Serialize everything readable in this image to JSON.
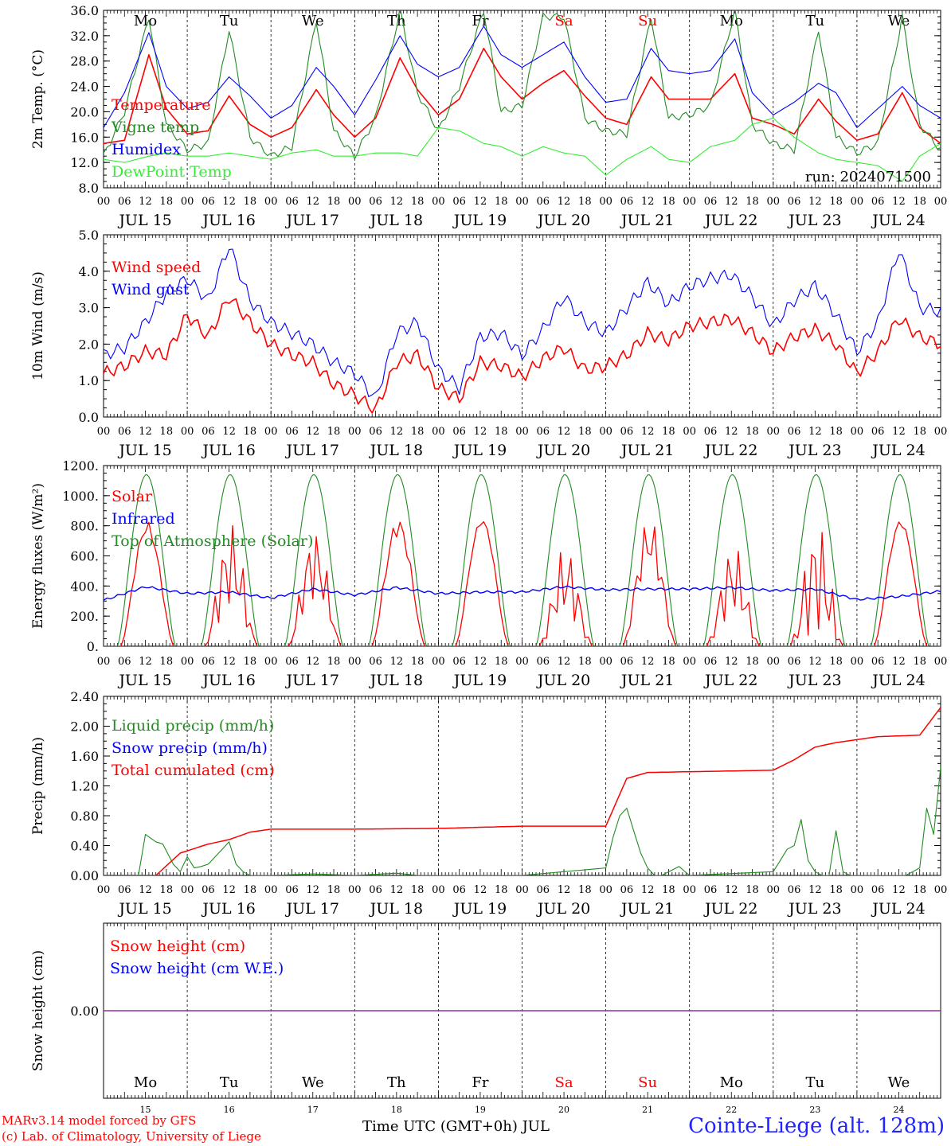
{
  "x_axis": {
    "hour_ticks": [
      "00",
      "06",
      "12",
      "18"
    ],
    "hour_end": "00",
    "dates": [
      "JUL 15",
      "JUL 16",
      "JUL 17",
      "JUL 18",
      "JUL 19",
      "JUL 20",
      "JUL 21",
      "JUL 22",
      "JUL 23",
      "JUL 24"
    ],
    "weekdays": [
      {
        "label": "Mo",
        "color": "#000000"
      },
      {
        "label": "Tu",
        "color": "#000000"
      },
      {
        "label": "We",
        "color": "#000000"
      },
      {
        "label": "Th",
        "color": "#000000"
      },
      {
        "label": "Fr",
        "color": "#000000"
      },
      {
        "label": "Sa",
        "color": "#ff0000"
      },
      {
        "label": "Su",
        "color": "#ff0000"
      },
      {
        "label": "Mo",
        "color": "#000000"
      },
      {
        "label": "Tu",
        "color": "#000000"
      },
      {
        "label": "We",
        "color": "#000000"
      }
    ],
    "day_numbers": [
      "15",
      "16",
      "17",
      "18",
      "19",
      "20",
      "21",
      "22",
      "23",
      "24"
    ]
  },
  "footer": {
    "model_line": "MARv3.14 model forced by GFS",
    "copyright_line": "(c) Lab. of Climatology, University of Liege",
    "time_label": "Time UTC (GMT+0h) JUL",
    "station": "Cointe-Liege (alt. 128m)"
  },
  "chart_data": [
    {
      "type": "line",
      "ylabel": "2m Temp. (°C)",
      "ylim": [
        8.0,
        36.0
      ],
      "yticks": [
        "8.0",
        "12.0",
        "16.0",
        "20.0",
        "24.0",
        "28.0",
        "32.0",
        "36.0"
      ],
      "annotation": "run: 2024071500",
      "x_hours": [
        0,
        6,
        13,
        18,
        24,
        30,
        36,
        42,
        48,
        54,
        61,
        66,
        72,
        78,
        85,
        90,
        96,
        102,
        109,
        114,
        120,
        126,
        132,
        138,
        144,
        150,
        157,
        162,
        168,
        174,
        181,
        186,
        192,
        198,
        205,
        210,
        216,
        222,
        229,
        234,
        240
      ],
      "series": [
        {
          "name": "Temperature",
          "color": "#ff0000",
          "values": [
            15.0,
            15.5,
            29.0,
            20.5,
            16.5,
            17.0,
            22.5,
            18.0,
            16.0,
            17.5,
            23.5,
            19.5,
            16.0,
            19.0,
            28.5,
            23.5,
            19.5,
            22.0,
            30.0,
            25.5,
            22.0,
            24.5,
            26.5,
            22.5,
            19.0,
            18.0,
            25.5,
            22.0,
            22.0,
            22.0,
            26.0,
            19.0,
            18.0,
            16.5,
            22.0,
            18.5,
            15.5,
            16.5,
            23.0,
            17.5,
            15.0
          ]
        },
        {
          "name": "Vigne temp",
          "color": "#228b22",
          "values": [
            13.0,
            20.0,
            35.0,
            18.0,
            14.0,
            15.0,
            33.0,
            16.0,
            13.0,
            14.5,
            34.5,
            17.0,
            13.0,
            19.0,
            36.0,
            23.0,
            17.0,
            24.0,
            36.0,
            20.0,
            21.0,
            35.0,
            35.0,
            19.0,
            17.0,
            16.5,
            35.0,
            19.0,
            19.5,
            21.0,
            36.0,
            18.0,
            15.0,
            14.0,
            33.0,
            16.0,
            13.5,
            15.0,
            35.0,
            18.0,
            14.0
          ]
        },
        {
          "name": "Humidex",
          "color": "#0000ff",
          "values": [
            17.5,
            23.0,
            32.5,
            24.0,
            20.5,
            21.5,
            25.5,
            22.5,
            19.0,
            21.0,
            27.0,
            24.0,
            19.5,
            25.0,
            32.0,
            27.5,
            25.5,
            27.0,
            33.5,
            29.0,
            27.0,
            29.0,
            31.0,
            25.5,
            21.5,
            22.0,
            30.0,
            26.5,
            26.0,
            26.5,
            31.5,
            23.0,
            19.5,
            21.5,
            24.5,
            23.0,
            17.5,
            20.5,
            24.0,
            21.0,
            19.0
          ]
        },
        {
          "name": "DewPoint Temp",
          "color": "#33ee33",
          "values": [
            12.5,
            12.0,
            13.0,
            13.5,
            13.0,
            13.0,
            13.5,
            13.0,
            12.5,
            13.5,
            14.0,
            13.0,
            13.0,
            13.5,
            13.5,
            13.0,
            17.5,
            17.0,
            15.0,
            14.5,
            13.0,
            14.5,
            13.5,
            13.0,
            10.0,
            12.5,
            14.5,
            12.5,
            12.0,
            14.5,
            15.5,
            18.0,
            19.0,
            16.0,
            13.5,
            12.5,
            12.0,
            11.5,
            9.0,
            13.0,
            15.0
          ]
        }
      ]
    },
    {
      "type": "line",
      "ylabel": "10m Wind (m/s)",
      "ylim": [
        0.0,
        5.0
      ],
      "yticks": [
        "0.0",
        "1.0",
        "2.0",
        "3.0",
        "4.0",
        "5.0"
      ],
      "x_hours": [
        0,
        6,
        12,
        18,
        24,
        30,
        36,
        42,
        48,
        54,
        60,
        66,
        72,
        78,
        84,
        90,
        96,
        102,
        108,
        114,
        120,
        126,
        132,
        138,
        144,
        150,
        156,
        162,
        168,
        174,
        180,
        186,
        192,
        198,
        204,
        210,
        216,
        222,
        228,
        234,
        240
      ],
      "series": [
        {
          "name": "Wind speed",
          "color": "#ff0000",
          "values": [
            1.2,
            1.4,
            1.8,
            1.7,
            2.8,
            2.2,
            3.3,
            2.6,
            2.0,
            1.7,
            1.5,
            0.9,
            0.6,
            0.2,
            1.5,
            1.7,
            0.8,
            0.5,
            1.5,
            1.4,
            1.1,
            1.6,
            1.9,
            1.3,
            1.4,
            1.7,
            2.3,
            2.1,
            2.5,
            2.6,
            2.7,
            2.3,
            1.8,
            2.2,
            2.4,
            2.0,
            1.2,
            1.8,
            2.7,
            2.2,
            2.0
          ]
        },
        {
          "name": "Wind gust",
          "color": "#0000ff",
          "values": [
            1.7,
            1.9,
            2.6,
            3.4,
            3.8,
            3.2,
            4.7,
            3.2,
            2.6,
            2.3,
            2.0,
            1.5,
            1.2,
            0.5,
            2.3,
            2.6,
            1.3,
            0.8,
            2.2,
            2.3,
            1.7,
            2.4,
            3.3,
            2.6,
            2.3,
            3.0,
            3.7,
            3.1,
            3.6,
            3.8,
            3.9,
            3.3,
            2.5,
            3.2,
            3.6,
            2.8,
            1.8,
            2.6,
            4.6,
            3.0,
            2.9
          ]
        }
      ]
    },
    {
      "type": "line",
      "ylabel": "Energy fluxes (W/m²)",
      "ylim": [
        0,
        1200
      ],
      "yticks": [
        "0.",
        "200.",
        "400.",
        "600.",
        "800.",
        "1000.",
        "1200."
      ],
      "solar_noon_hour": 12.3,
      "series": [
        {
          "name": "Solar",
          "color": "#ff0000",
          "daily_peaks": [
            830,
            820,
            780,
            860,
            850,
            670,
            860,
            680,
            850,
            840
          ],
          "variability": [
            0.1,
            0.7,
            0.6,
            0.15,
            0.05,
            0.7,
            0.4,
            0.7,
            0.9,
            0.05
          ]
        },
        {
          "name": "Infrared",
          "color": "#0000ff",
          "x_hours": [
            0,
            12,
            24,
            36,
            48,
            60,
            72,
            84,
            96,
            108,
            120,
            132,
            144,
            156,
            168,
            180,
            192,
            204,
            216,
            228,
            240
          ],
          "values": [
            305,
            395,
            350,
            360,
            320,
            380,
            340,
            390,
            350,
            360,
            360,
            395,
            375,
            380,
            380,
            390,
            370,
            380,
            310,
            330,
            365
          ]
        },
        {
          "name": "Top of Atmosphere (Solar)",
          "color": "#228b22",
          "daily_peak": 1140,
          "daylight_hours": [
            4.0,
            20.6
          ]
        }
      ]
    },
    {
      "type": "line",
      "ylabel": "Precip (mm/h)",
      "ylim": [
        0.0,
        2.4
      ],
      "yticks": [
        "0.00",
        "0.40",
        "0.80",
        "1.20",
        "1.60",
        "2.00",
        "2.40"
      ],
      "series": [
        {
          "name": "Liquid precip (mm/h)",
          "color": "#228b22",
          "x_hours": [
            0,
            10,
            12,
            15,
            17,
            20,
            22,
            24,
            26,
            28,
            30,
            33,
            36,
            38,
            40,
            42,
            44,
            46,
            48,
            60,
            72,
            84,
            90,
            96,
            120,
            144,
            146,
            148,
            150,
            152,
            154,
            156,
            158,
            160,
            165,
            168,
            192,
            194,
            196,
            198,
            200,
            202,
            204,
            206,
            208,
            210,
            212,
            214,
            216,
            219,
            222,
            226,
            230,
            234,
            236,
            238,
            240
          ],
          "values": [
            0,
            0,
            0.55,
            0.45,
            0.42,
            0.15,
            0.05,
            0.25,
            0.1,
            0.12,
            0.15,
            0.3,
            0.45,
            0.15,
            0.05,
            0,
            0,
            0,
            0,
            0.02,
            0,
            0.03,
            0,
            0,
            0,
            0.1,
            0.5,
            0.8,
            0.9,
            0.6,
            0.3,
            0.1,
            0,
            0,
            0.12,
            0,
            0.05,
            0.2,
            0.35,
            0.4,
            0.75,
            0.2,
            0.05,
            0,
            0,
            0.6,
            0.05,
            0,
            0,
            0,
            0,
            0,
            0,
            0.1,
            0.9,
            0.55,
            1.45
          ]
        },
        {
          "name": "Snow precip (mm/h)",
          "color": "#0000ff",
          "values": []
        },
        {
          "name": "Total cumulated (cm)",
          "color": "#ff0000",
          "x_hours": [
            0,
            15,
            22,
            30,
            36,
            42,
            48,
            72,
            96,
            120,
            144,
            150,
            156,
            180,
            192,
            198,
            204,
            210,
            216,
            222,
            234,
            240
          ],
          "values": [
            0,
            0,
            0.3,
            0.42,
            0.48,
            0.58,
            0.62,
            0.62,
            0.63,
            0.66,
            0.66,
            1.3,
            1.38,
            1.4,
            1.41,
            1.55,
            1.72,
            1.78,
            1.82,
            1.86,
            1.88,
            2.25
          ]
        }
      ]
    },
    {
      "type": "line",
      "ylabel": "Snow height (cm)",
      "ylim": [
        -0.01,
        0.01
      ],
      "yticks": [
        "0.00"
      ],
      "series": [
        {
          "name": "Snow height (cm)",
          "color": "#ff0000",
          "values": [
            0,
            0
          ]
        },
        {
          "name": "Snow height (cm W.E.)",
          "color": "#0000ff",
          "values": [
            0,
            0
          ]
        }
      ]
    }
  ]
}
